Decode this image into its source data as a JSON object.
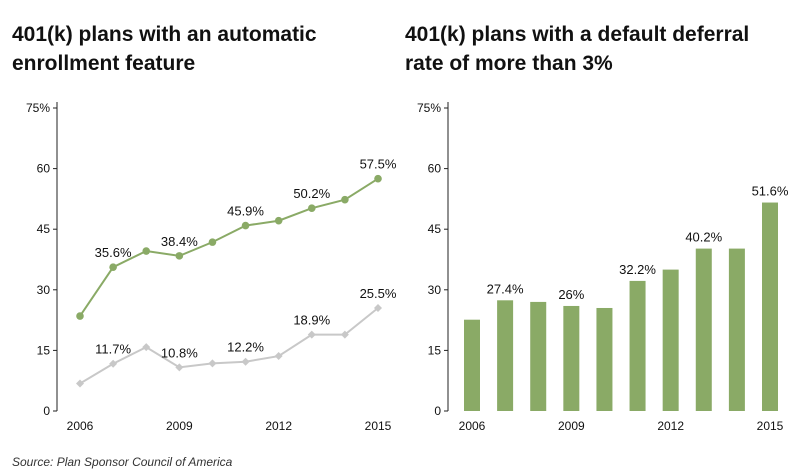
{
  "charts": [
    {
      "title": "401(k) plans with an automatic enrollment feature",
      "type": "line",
      "x": [
        2006,
        2007,
        2008,
        2009,
        2010,
        2011,
        2012,
        2013,
        2014,
        2015
      ],
      "x_tick_labels": [
        "2006",
        "2009",
        "2012",
        "2015"
      ],
      "y_tick_labels": [
        "0",
        "15",
        "30",
        "45",
        "60",
        "75%"
      ],
      "ylim": [
        0,
        75
      ],
      "series": [
        {
          "color": "#8aaa66",
          "values": [
            23.5,
            35.6,
            39.6,
            38.4,
            41.8,
            45.9,
            47.1,
            50.2,
            52.3,
            57.5
          ],
          "data_labels": [
            "",
            "35.6%",
            "",
            "38.4%",
            "",
            "45.9%",
            "",
            "50.2%",
            "",
            "57.5%"
          ]
        },
        {
          "color": "#c8c8c8",
          "values": [
            6.8,
            11.7,
            15.8,
            10.8,
            11.8,
            12.2,
            13.6,
            18.9,
            18.9,
            25.5
          ],
          "data_labels": [
            "",
            "11.7%",
            "",
            "10.8%",
            "",
            "12.2%",
            "",
            "18.9%",
            "",
            "25.5%"
          ]
        }
      ]
    },
    {
      "title": "401(k) plans with a default deferral rate of more than 3%",
      "type": "bar",
      "x": [
        2006,
        2007,
        2008,
        2009,
        2010,
        2011,
        2012,
        2013,
        2014,
        2015
      ],
      "x_tick_labels": [
        "2006",
        "2009",
        "2012",
        "2015"
      ],
      "y_tick_labels": [
        "0",
        "15",
        "30",
        "45",
        "60",
        "75%"
      ],
      "ylim": [
        0,
        75
      ],
      "bar_color": "#8aaa66",
      "values": [
        22.6,
        27.4,
        27.0,
        26.0,
        25.5,
        32.2,
        35.0,
        40.2,
        40.2,
        51.6
      ],
      "data_labels": [
        "",
        "27.4%",
        "",
        "26%",
        "",
        "32.2%",
        "",
        "40.2%",
        "",
        "51.6%"
      ]
    }
  ],
  "source": "Source: Plan Sponsor Council of America",
  "chart_data": [
    {
      "type": "line",
      "title": "401(k) plans with an automatic enrollment feature",
      "x": [
        2006,
        2007,
        2008,
        2009,
        2010,
        2011,
        2012,
        2013,
        2014,
        2015
      ],
      "ylim": [
        0,
        75
      ],
      "series": [
        {
          "values": [
            23.5,
            35.6,
            39.6,
            38.4,
            41.8,
            45.9,
            47.1,
            50.2,
            52.3,
            57.5
          ]
        },
        {
          "values": [
            6.8,
            11.7,
            15.8,
            10.8,
            11.8,
            12.2,
            13.6,
            18.9,
            18.9,
            25.5
          ]
        }
      ]
    },
    {
      "type": "bar",
      "title": "401(k) plans with a default deferral rate of more than 3%",
      "categories": [
        2006,
        2007,
        2008,
        2009,
        2010,
        2011,
        2012,
        2013,
        2014,
        2015
      ],
      "values": [
        22.6,
        27.4,
        27.0,
        26.0,
        25.5,
        32.2,
        35.0,
        40.2,
        40.2,
        51.6
      ],
      "ylim": [
        0,
        75
      ]
    }
  ]
}
